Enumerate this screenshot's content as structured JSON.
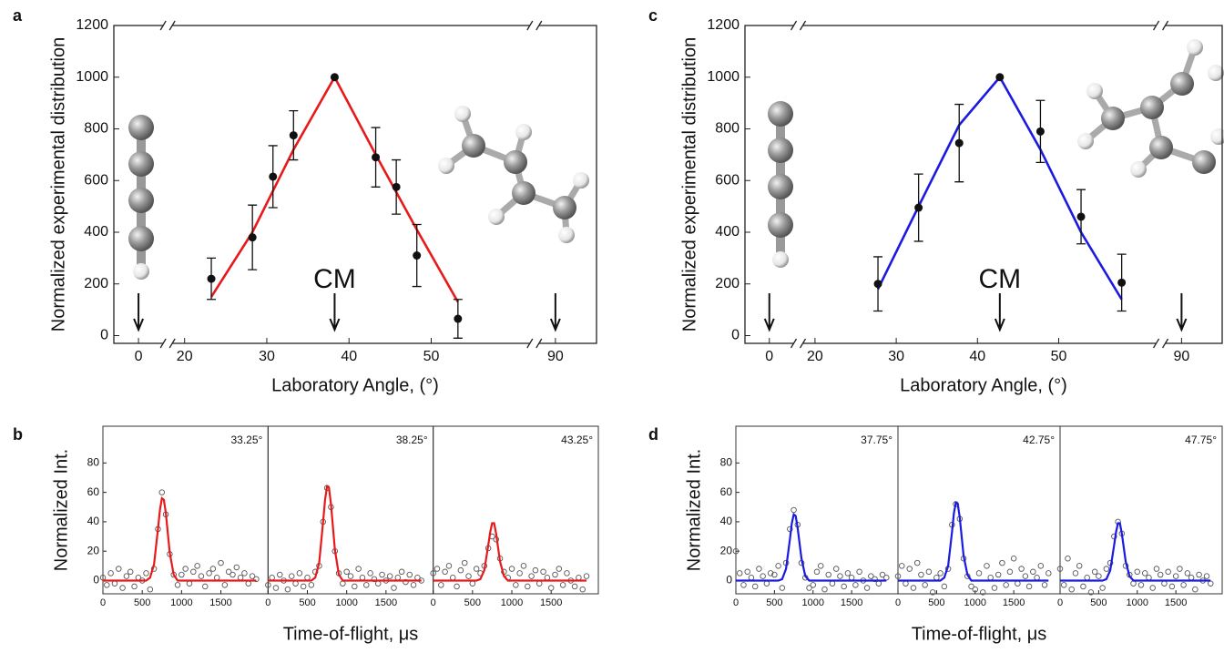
{
  "chart_data": [
    {
      "panel": "a",
      "type": "line",
      "ylabel": "Normalized experimental distribution",
      "xlabel": "Laboratory Angle, (°)",
      "xlim": [
        -3,
        95
      ],
      "x_breaks": [
        [
          3,
          18.5
        ],
        [
          62,
          88
        ]
      ],
      "ylim": [
        -30,
        1200
      ],
      "xticks": [
        0,
        20,
        30,
        40,
        50,
        90
      ],
      "yticks": [
        0,
        200,
        400,
        600,
        800,
        1000,
        1200
      ],
      "color": "#e8191a",
      "points": {
        "x": [
          23.25,
          28.25,
          30.75,
          33.25,
          38.25,
          43.25,
          45.75,
          48.25,
          53.25
        ],
        "values": [
          220,
          380,
          615,
          775,
          1000,
          690,
          575,
          310,
          65
        ],
        "errors": [
          80,
          125,
          120,
          95,
          0,
          115,
          105,
          120,
          75
        ]
      },
      "fit": {
        "x": [
          23.25,
          28.25,
          33.25,
          38.25,
          43.25,
          48.25,
          53.25
        ],
        "values": [
          150,
          400,
          720,
          1000,
          700,
          410,
          130
        ]
      },
      "arrows": [
        {
          "value": 0
        },
        {
          "value": 38.25,
          "label": "CM"
        },
        {
          "value": 90
        }
      ]
    },
    {
      "panel": "b",
      "type": "scatter",
      "ylabel": "Normalized Int.",
      "xlabel": "Time-of-flight, μs",
      "xlim": [
        0,
        2100
      ],
      "ylim": [
        -9,
        105
      ],
      "xticks": [
        0,
        500,
        1000,
        1500
      ],
      "yticks": [
        0,
        20,
        40,
        60,
        80
      ],
      "color": "#e8191a",
      "marker_color": "#555555",
      "x": [
        0,
        50,
        100,
        150,
        200,
        250,
        300,
        350,
        400,
        450,
        500,
        550,
        600,
        650,
        700,
        750,
        800,
        850,
        900,
        950,
        1000,
        1050,
        1100,
        1150,
        1200,
        1250,
        1300,
        1350,
        1400,
        1450,
        1500,
        1550,
        1600,
        1650,
        1700,
        1750,
        1800,
        1850,
        1900,
        1950
      ],
      "fit_x": [
        0,
        550,
        600,
        650,
        700,
        725,
        750,
        775,
        800,
        850,
        900,
        950,
        1950
      ],
      "series": [
        {
          "name": "33.25°",
          "values": [
            2,
            -3,
            5,
            -2,
            8,
            -5,
            3,
            6,
            -4,
            2,
            0,
            5,
            -6,
            8,
            35,
            60,
            45,
            18,
            4,
            -3,
            4,
            8,
            -2,
            6,
            10,
            3,
            -4,
            5,
            8,
            2,
            12,
            -3,
            6,
            4,
            9,
            2,
            5,
            -2,
            3,
            1
          ],
          "fit": [
            0,
            0,
            2,
            11,
            35,
            48,
            56,
            55,
            46,
            19,
            4,
            0,
            0
          ]
        },
        {
          "name": "38.25°",
          "values": [
            -3,
            2,
            -5,
            4,
            0,
            -6,
            3,
            -2,
            5,
            -4,
            2,
            -3,
            6,
            10,
            40,
            63,
            50,
            20,
            5,
            -2,
            6,
            3,
            -4,
            8,
            2,
            -3,
            5,
            1,
            -2,
            4,
            0,
            3,
            -5,
            2,
            6,
            -1,
            4,
            -3,
            2,
            0
          ],
          "fit": [
            0,
            0,
            2,
            12,
            40,
            55,
            64,
            63,
            52,
            21,
            4,
            0,
            0
          ]
        },
        {
          "name": "43.25°",
          "values": [
            5,
            8,
            -3,
            6,
            10,
            2,
            -4,
            7,
            12,
            3,
            -2,
            8,
            5,
            10,
            22,
            30,
            28,
            15,
            6,
            2,
            8,
            -3,
            5,
            10,
            -4,
            3,
            7,
            -2,
            6,
            2,
            -5,
            4,
            8,
            -3,
            5,
            0,
            -4,
            2,
            -6,
            3
          ],
          "fit": [
            0,
            0,
            1,
            7,
            24,
            33,
            39,
            39,
            32,
            13,
            3,
            0,
            0
          ]
        }
      ]
    },
    {
      "panel": "c",
      "type": "line",
      "ylabel": "Normalized experimental distribution",
      "xlabel": "Laboratory Angle, (°)",
      "xlim": [
        -3,
        95
      ],
      "x_breaks": [
        [
          3,
          18.5
        ],
        [
          62,
          88
        ]
      ],
      "ylim": [
        -30,
        1200
      ],
      "xticks": [
        0,
        20,
        30,
        40,
        50,
        90
      ],
      "yticks": [
        0,
        200,
        400,
        600,
        800,
        1000,
        1200
      ],
      "color": "#1a1ae0",
      "points": {
        "x": [
          27.75,
          32.75,
          37.75,
          42.75,
          47.75,
          52.75,
          57.75
        ],
        "values": [
          200,
          495,
          745,
          1000,
          790,
          460,
          205
        ],
        "errors": [
          105,
          130,
          150,
          0,
          120,
          105,
          110
        ]
      },
      "fit": {
        "x": [
          27.75,
          32.75,
          37.75,
          42.75,
          47.75,
          52.75,
          57.75
        ],
        "values": [
          180,
          500,
          815,
          1000,
          720,
          400,
          140
        ]
      },
      "arrows": [
        {
          "value": 0
        },
        {
          "value": 42.75,
          "label": "CM"
        },
        {
          "value": 90
        }
      ]
    },
    {
      "panel": "d",
      "type": "scatter",
      "ylabel": "Normalized Int.",
      "xlabel": "Time-of-flight, μs",
      "xlim": [
        0,
        2100
      ],
      "ylim": [
        -9,
        105
      ],
      "xticks": [
        0,
        500,
        1000,
        1500
      ],
      "yticks": [
        0,
        20,
        40,
        60,
        80
      ],
      "color": "#1a1ae0",
      "marker_color": "#555555",
      "x": [
        0,
        50,
        100,
        150,
        200,
        250,
        300,
        350,
        400,
        450,
        500,
        550,
        600,
        650,
        700,
        750,
        800,
        850,
        900,
        950,
        1000,
        1050,
        1100,
        1150,
        1200,
        1250,
        1300,
        1350,
        1400,
        1450,
        1500,
        1550,
        1600,
        1650,
        1700,
        1750,
        1800,
        1850,
        1900,
        1950
      ],
      "fit_x": [
        0,
        550,
        600,
        650,
        700,
        725,
        750,
        775,
        800,
        850,
        900,
        950,
        1950
      ],
      "series": [
        {
          "name": "37.75°",
          "values": [
            20,
            5,
            -3,
            6,
            2,
            -4,
            8,
            3,
            -2,
            5,
            4,
            10,
            -5,
            12,
            35,
            48,
            38,
            12,
            2,
            -5,
            -3,
            6,
            10,
            -6,
            4,
            -2,
            8,
            3,
            -4,
            5,
            2,
            -3,
            6,
            0,
            -5,
            3,
            1,
            -2,
            4,
            2
          ],
          "fit": [
            0,
            0,
            1,
            8,
            28,
            39,
            45,
            44,
            36,
            15,
            3,
            0,
            0
          ]
        },
        {
          "name": "42.75°",
          "values": [
            3,
            10,
            -2,
            8,
            -5,
            12,
            4,
            -3,
            6,
            -8,
            2,
            5,
            -4,
            8,
            38,
            52,
            42,
            15,
            3,
            -4,
            -6,
            5,
            -8,
            10,
            2,
            -5,
            4,
            12,
            -3,
            6,
            15,
            -2,
            8,
            3,
            -4,
            6,
            2,
            10,
            -3,
            5
          ],
          "fit": [
            0,
            0,
            2,
            10,
            33,
            46,
            53,
            52,
            43,
            17,
            4,
            0,
            0
          ]
        },
        {
          "name": "47.75°",
          "values": [
            8,
            -3,
            15,
            -6,
            5,
            10,
            -4,
            2,
            -8,
            6,
            3,
            -5,
            8,
            12,
            30,
            40,
            32,
            10,
            4,
            -2,
            6,
            -3,
            5,
            2,
            -5,
            8,
            4,
            -2,
            6,
            -4,
            3,
            8,
            -3,
            5,
            2,
            -6,
            4,
            0,
            3,
            -2
          ],
          "fit": [
            0,
            0,
            1,
            7,
            24,
            33,
            39,
            39,
            32,
            13,
            3,
            0,
            0
          ]
        }
      ]
    }
  ]
}
